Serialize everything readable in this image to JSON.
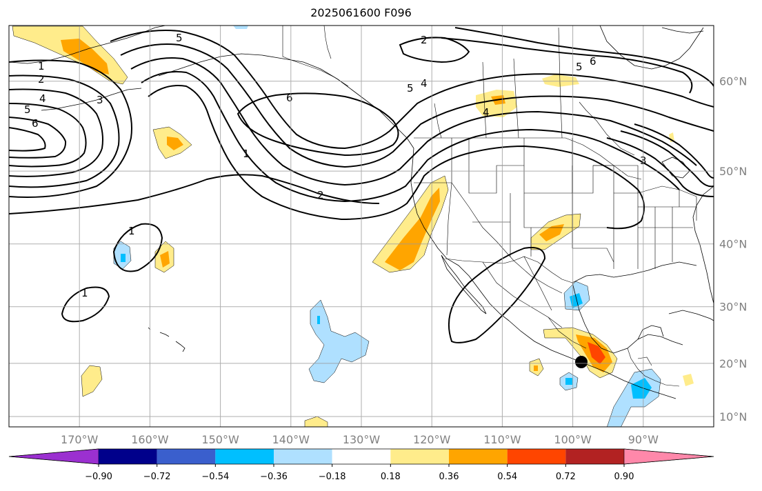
{
  "title": "2025061600 F096",
  "map": {
    "lon_range": [
      -180,
      -80
    ],
    "lat_range": [
      8,
      65
    ],
    "lon_ticks": [
      "170°W",
      "160°W",
      "150°W",
      "140°W",
      "130°W",
      "120°W",
      "110°W",
      "100°W",
      "90°W"
    ],
    "lat_ticks": [
      "60°N",
      "50°N",
      "40°N",
      "30°N",
      "20°N",
      "10°N"
    ],
    "grid": true,
    "contour_labels": [
      "1",
      "2",
      "4",
      "5",
      "6",
      "3",
      "6",
      "5",
      "2",
      "5",
      "4",
      "6",
      "5",
      "1",
      "2",
      "4",
      "3",
      "1",
      "1"
    ],
    "marker": {
      "name": "black-dot",
      "lon": -99,
      "lat": 17
    }
  },
  "colorbar": {
    "ticks": [
      "−0.90",
      "−0.72",
      "−0.54",
      "−0.36",
      "−0.18",
      "0.18",
      "0.36",
      "0.54",
      "0.72",
      "0.90"
    ],
    "colors": [
      "#9b30d0",
      "#00008b",
      "#3a5fcd",
      "#00bfff",
      "#afe0ff",
      "#ffffff",
      "#ffec8b",
      "#ffa500",
      "#ff4500",
      "#b22222",
      "#ff88aa"
    ]
  }
}
